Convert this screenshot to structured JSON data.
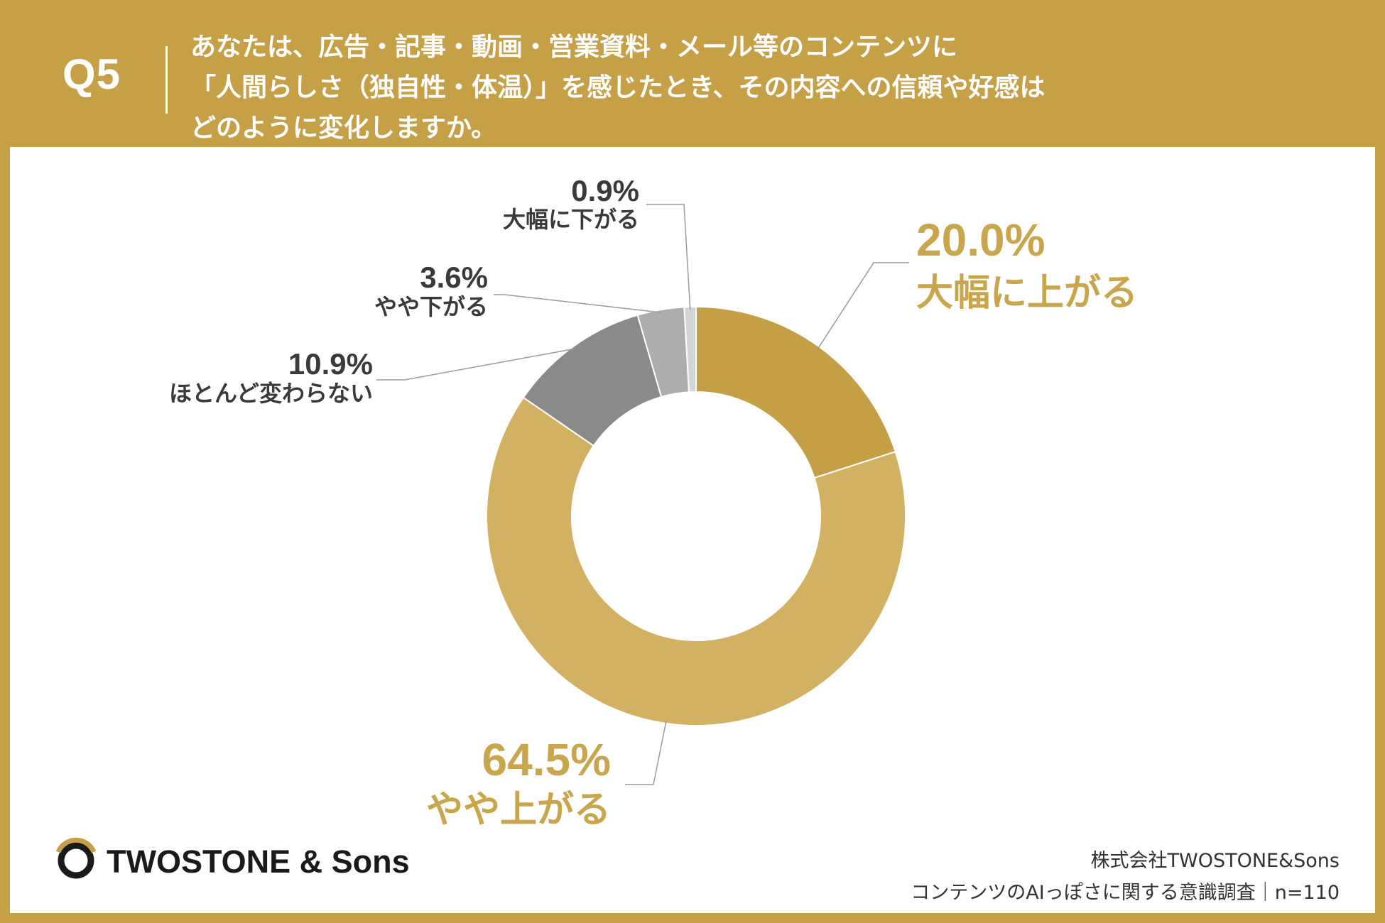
{
  "header": {
    "q_number": "Q5",
    "question_lines": [
      "あなたは、広告・記事・動画・営業資料・メール等のコンテンツに",
      "「人間らしさ（独自性・体温）」を感じたとき、その内容への信頼や好感は",
      "どのように変化しますか。"
    ]
  },
  "chart_data": {
    "type": "pie",
    "donut": true,
    "slices": [
      {
        "label": "大幅に上がる",
        "value": 20.0,
        "value_text": "20.0%",
        "color": "#c49f46"
      },
      {
        "label": "やや上がる",
        "value": 64.5,
        "value_text": "64.5%",
        "color": "#d3b162"
      },
      {
        "label": "ほとんど変わらない",
        "value": 10.9,
        "value_text": "10.9%",
        "color": "#8a8a8a"
      },
      {
        "label": "やや下がる",
        "value": 3.6,
        "value_text": "3.6%",
        "color": "#adadad"
      },
      {
        "label": "大幅に下がる",
        "value": 0.9,
        "value_text": "0.9%",
        "color": "#d4d4d4"
      }
    ]
  },
  "brand": {
    "name": "TWOSTONE & Sons"
  },
  "footer": {
    "company": "株式会社TWOSTONE&Sons",
    "survey": "コンテンツのAIっぽさに関する意識調査｜n=110"
  },
  "colors": {
    "background": "#c6a047",
    "highlight_text": "#c9a54c",
    "dark_text": "#3a3a3a",
    "leader_line": "#9a9a9a"
  }
}
